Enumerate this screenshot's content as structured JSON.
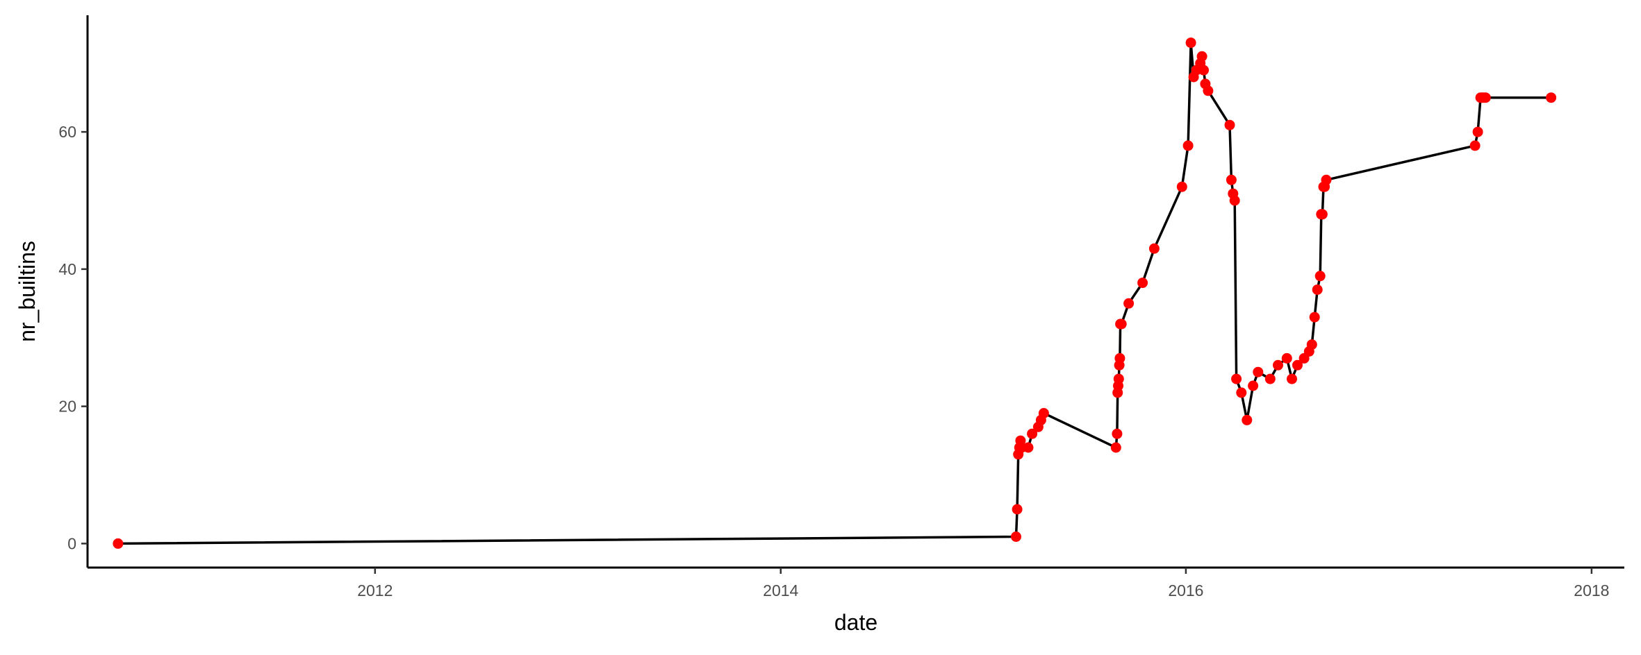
{
  "chart_data": {
    "type": "line",
    "xlabel": "date",
    "ylabel": "nr_builtins",
    "x_type": "date",
    "xlim": [
      "2010-08-01",
      "2018-03-01"
    ],
    "ylim": [
      -3.5,
      77
    ],
    "xticks": [
      "2012-01-01",
      "2014-01-01",
      "2016-01-01",
      "2018-01-01"
    ],
    "xtick_labels": [
      "2012",
      "2014",
      "2016",
      "2018"
    ],
    "yticks": [
      0,
      20,
      40,
      60
    ],
    "ytick_labels": [
      "0",
      "20",
      "40",
      "60"
    ],
    "grid": false,
    "legend": "none",
    "line_color": "#000000",
    "point_color": "#ff0000",
    "series": [
      {
        "x": [
          "2010-09-25",
          "2015-03-01",
          "2015-03-03",
          "2015-03-05",
          "2015-03-07",
          "2015-03-09",
          "2015-03-11",
          "2015-03-23",
          "2015-03-30",
          "2015-04-10",
          "2015-04-15",
          "2015-04-20",
          "2015-08-28",
          "2015-08-30",
          "2015-08-31",
          "2015-09-01",
          "2015-09-02",
          "2015-09-03",
          "2015-09-04",
          "2015-09-05",
          "2015-09-07",
          "2015-09-20",
          "2015-10-15",
          "2015-11-05",
          "2015-12-25",
          "2016-01-05",
          "2016-01-10",
          "2016-01-15",
          "2016-01-20",
          "2016-01-27",
          "2016-01-30",
          "2016-02-02",
          "2016-02-05",
          "2016-02-10",
          "2016-03-20",
          "2016-03-23",
          "2016-03-26",
          "2016-03-29",
          "2016-04-01",
          "2016-04-10",
          "2016-04-20",
          "2016-05-01",
          "2016-05-10",
          "2016-06-01",
          "2016-06-15",
          "2016-07-01",
          "2016-07-10",
          "2016-07-20",
          "2016-08-01",
          "2016-08-10",
          "2016-08-15",
          "2016-08-20",
          "2016-08-25",
          "2016-08-30",
          "2016-09-01",
          "2016-09-03",
          "2016-09-05",
          "2016-09-07",
          "2016-09-10",
          "2017-06-05",
          "2017-06-10",
          "2017-06-15",
          "2017-06-18",
          "2017-06-21",
          "2017-06-24",
          "2017-10-20"
        ],
        "y": [
          0,
          1,
          5,
          13,
          14,
          15,
          14,
          14,
          16,
          17,
          18,
          19,
          14,
          16,
          22,
          23,
          24,
          26,
          27,
          32,
          32,
          35,
          38,
          43,
          52,
          58,
          73,
          68,
          69,
          70,
          71,
          69,
          67,
          66,
          61,
          53,
          51,
          50,
          24,
          22,
          18,
          23,
          25,
          24,
          26,
          27,
          24,
          26,
          27,
          28,
          29,
          33,
          37,
          39,
          48,
          48,
          52,
          52,
          53,
          58,
          60,
          65,
          65,
          65,
          65,
          65
        ]
      }
    ]
  }
}
